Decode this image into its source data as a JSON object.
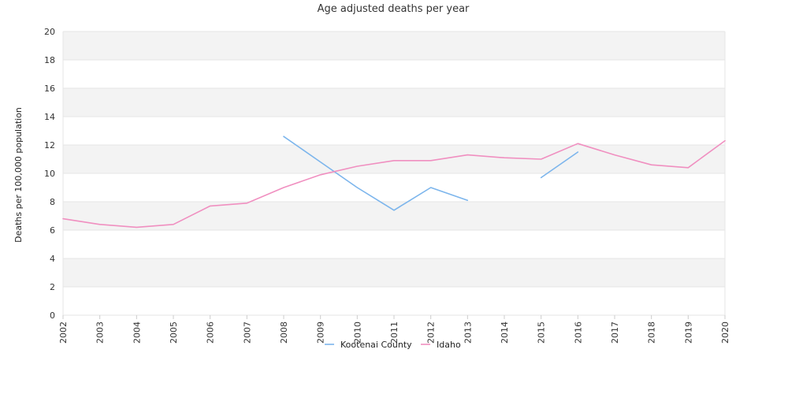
{
  "chart_data": {
    "type": "line",
    "title": "Age adjusted deaths per year",
    "xlabel": "",
    "ylabel": "Deaths per 100,000 population",
    "categories": [
      "2002",
      "2003",
      "2004",
      "2005",
      "2006",
      "2007",
      "2008",
      "2009",
      "2010",
      "2011",
      "2012",
      "2013",
      "2014",
      "2015",
      "2016",
      "2017",
      "2018",
      "2019",
      "2020"
    ],
    "ylim": [
      0,
      20
    ],
    "yticks": [
      0,
      2,
      4,
      6,
      8,
      10,
      12,
      14,
      16,
      18,
      20
    ],
    "grid": true,
    "legend_position": "bottom",
    "series": [
      {
        "name": "Kootenai County",
        "color": "#7cb5ec",
        "values": [
          null,
          null,
          null,
          null,
          null,
          null,
          12.6,
          10.8,
          9.0,
          7.4,
          9.0,
          8.1,
          null,
          9.7,
          11.5,
          null,
          null,
          null,
          null
        ]
      },
      {
        "name": "Idaho",
        "color": "#f08fc0",
        "values": [
          6.8,
          6.4,
          6.2,
          6.4,
          7.7,
          7.9,
          9.0,
          9.9,
          10.5,
          10.9,
          10.9,
          11.3,
          11.1,
          11.0,
          12.1,
          11.3,
          10.6,
          10.4,
          12.3
        ]
      }
    ]
  }
}
